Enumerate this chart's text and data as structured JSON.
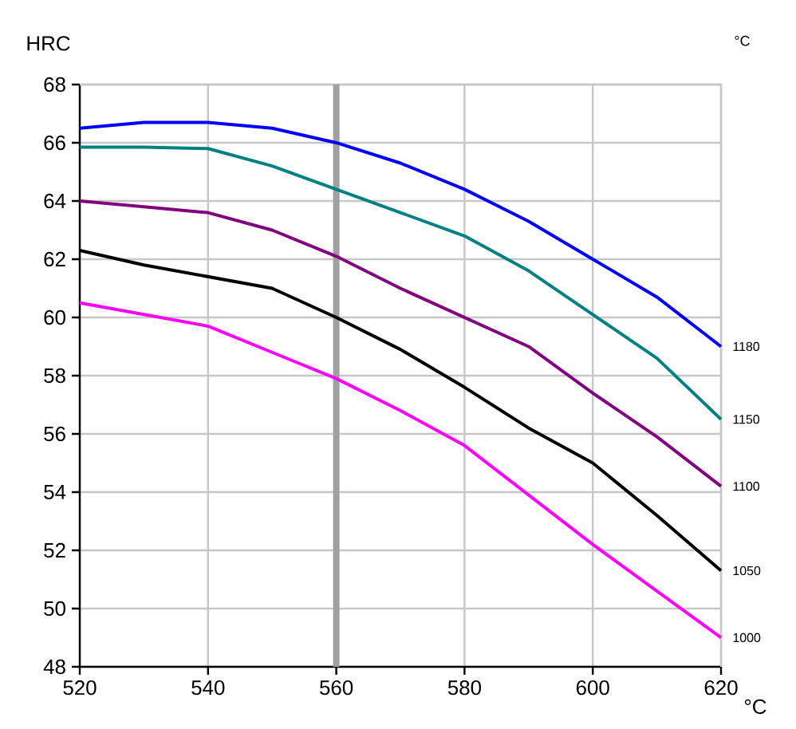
{
  "chart_data": {
    "type": "line",
    "ylabel": "HRC",
    "xlabel": "°C",
    "legend_title": "°C",
    "x": [
      520,
      530,
      540,
      550,
      560,
      570,
      580,
      590,
      600,
      610,
      620
    ],
    "xlim": [
      520,
      620
    ],
    "xticks": [
      520,
      540,
      560,
      580,
      600,
      620
    ],
    "ylim": [
      48,
      68
    ],
    "yticks": [
      48,
      50,
      52,
      54,
      56,
      58,
      60,
      62,
      64,
      66,
      68
    ],
    "grid": true,
    "marker": "none",
    "line_style": "solid",
    "series": [
      {
        "name": "1180",
        "color": "#0000ff",
        "values": [
          66.5,
          66.7,
          66.7,
          66.5,
          66.0,
          65.3,
          64.4,
          63.3,
          62.0,
          60.7,
          59.0
        ]
      },
      {
        "name": "1150",
        "color": "#008080",
        "values": [
          65.85,
          65.85,
          65.8,
          65.2,
          64.4,
          63.6,
          62.8,
          61.6,
          60.1,
          58.6,
          56.5
        ]
      },
      {
        "name": "1100",
        "color": "#800080",
        "values": [
          64.0,
          63.8,
          63.6,
          63.0,
          62.1,
          61.0,
          60.0,
          59.0,
          57.4,
          55.9,
          54.2
        ]
      },
      {
        "name": "1050",
        "color": "#000000",
        "values": [
          62.3,
          61.8,
          61.4,
          61.0,
          60.0,
          58.9,
          57.6,
          56.2,
          55.0,
          53.2,
          51.3
        ]
      },
      {
        "name": "1000",
        "color": "#ff00ff",
        "values": [
          60.5,
          60.1,
          59.7,
          58.8,
          57.9,
          56.8,
          55.6,
          53.9,
          52.2,
          50.6,
          49.0
        ]
      }
    ],
    "ref_lines": [
      {
        "axis": "x",
        "value": 560,
        "color": "#a0a0a0"
      }
    ]
  }
}
